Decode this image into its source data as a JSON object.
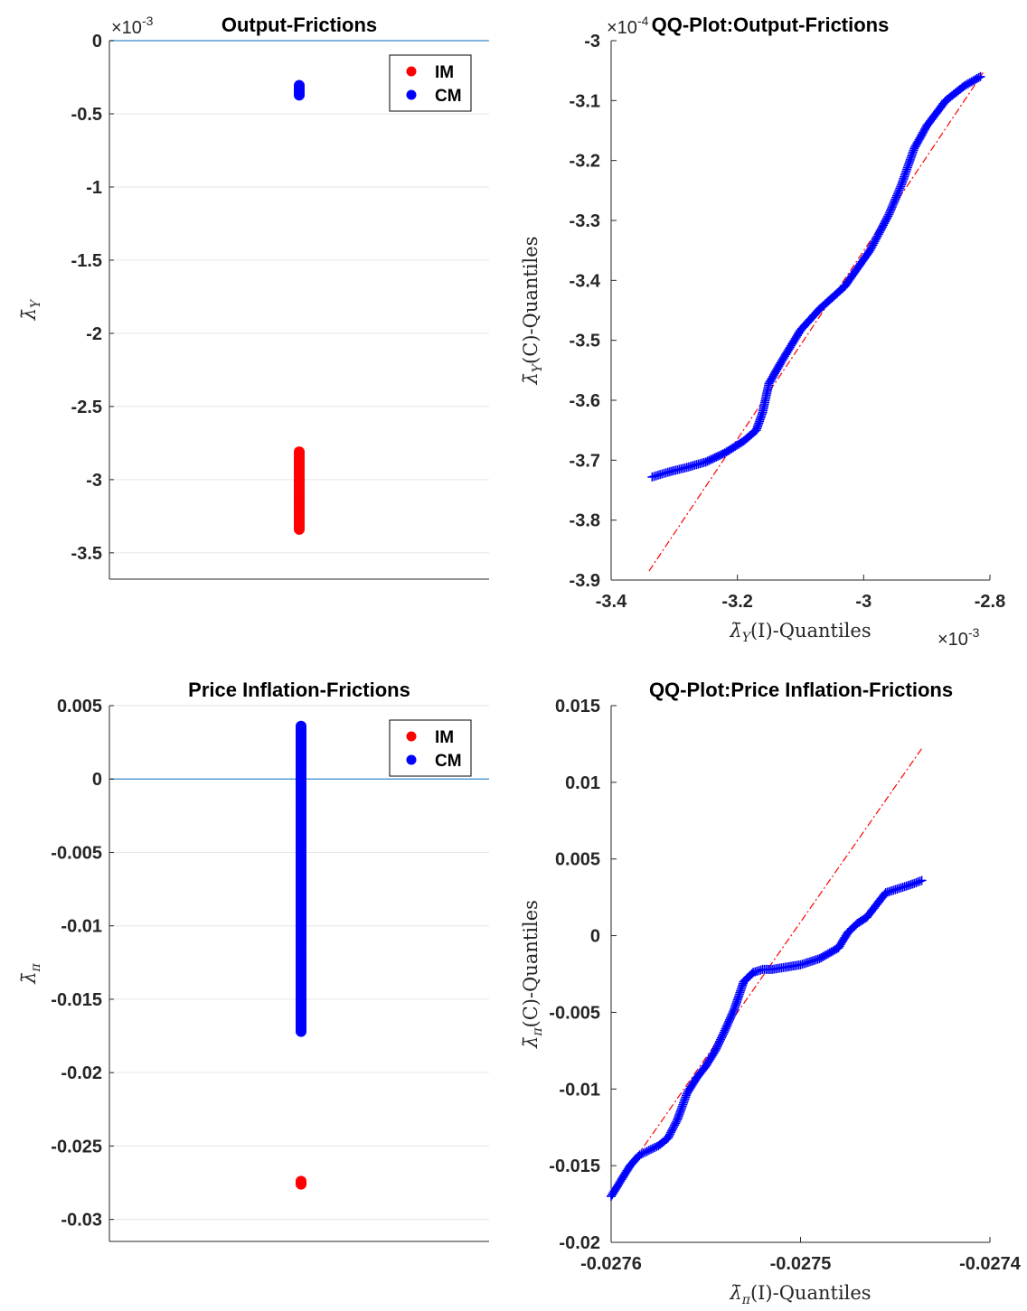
{
  "chart_data": [
    {
      "type": "scatter",
      "title": "Output-Frictions",
      "ylabel": "λ̄_Y",
      "exponent": "-3",
      "ylim": [
        -3.68,
        0
      ],
      "yticks": [
        0,
        -0.5,
        -1,
        -1.5,
        -2,
        -2.5,
        -3,
        -3.5
      ],
      "ytick_labels": [
        "0",
        "-0.5",
        "-1",
        "-1.5",
        "-2",
        "-2.5",
        "-3",
        "-3.5"
      ],
      "grid": true,
      "reference_line": 0,
      "legend_position": "top-right",
      "series": [
        {
          "name": "IM",
          "color": "#ff0000",
          "x": 0,
          "y_range": [
            -3.34,
            -2.81
          ]
        },
        {
          "name": "CM",
          "color": "#0000ff",
          "x": 0,
          "y_range": [
            -0.372,
            -0.306
          ]
        }
      ]
    },
    {
      "type": "scatter",
      "title": "QQ-Plot:Output-Frictions",
      "xlabel": "λ̄_Y(I)-Quantiles",
      "ylabel": "λ̄_Y(C)-Quantiles",
      "x_exponent": "-3",
      "y_exponent": "-4",
      "xlim": [
        -3.4,
        -2.8
      ],
      "ylim": [
        -3.9,
        -3.0
      ],
      "xticks": [
        -3.4,
        -3.2,
        -3.0,
        -2.8
      ],
      "xtick_labels": [
        "-3.4",
        "-3.2",
        "-3",
        "-2.8"
      ],
      "yticks": [
        -3.0,
        -3.1,
        -3.2,
        -3.3,
        -3.4,
        -3.5,
        -3.6,
        -3.7,
        -3.8,
        -3.9
      ],
      "ytick_labels": [
        "-3",
        "-3.1",
        "-3.2",
        "-3.3",
        "-3.4",
        "-3.5",
        "-3.6",
        "-3.7",
        "-3.8",
        "-3.9"
      ],
      "grid": false,
      "marker_color": "#0000ff",
      "reference_color": "#ff0000",
      "reference_line": {
        "x": [
          -3.34,
          -2.81
        ],
        "y": [
          -3.885,
          -3.052
        ]
      },
      "quantiles": {
        "x": [
          -3.335,
          -3.31,
          -3.28,
          -3.25,
          -3.22,
          -3.19,
          -3.17,
          -3.16,
          -3.15,
          -3.13,
          -3.1,
          -3.07,
          -3.03,
          -2.99,
          -2.96,
          -2.94,
          -2.92,
          -2.9,
          -2.87,
          -2.84,
          -2.815
        ],
        "y": [
          -3.728,
          -3.72,
          -3.712,
          -3.703,
          -3.688,
          -3.668,
          -3.65,
          -3.62,
          -3.572,
          -3.535,
          -3.483,
          -3.448,
          -3.41,
          -3.35,
          -3.29,
          -3.24,
          -3.18,
          -3.142,
          -3.1,
          -3.075,
          -3.06
        ]
      }
    },
    {
      "type": "scatter",
      "title": "Price Inflation-Frictions",
      "ylabel": "λ̄_π",
      "ylim": [
        -0.0315,
        0.005
      ],
      "yticks": [
        0.005,
        0,
        -0.005,
        -0.01,
        -0.015,
        -0.02,
        -0.025,
        -0.03
      ],
      "ytick_labels": [
        "0.005",
        "0",
        "-0.005",
        "-0.01",
        "-0.015",
        "-0.02",
        "-0.025",
        "-0.03"
      ],
      "grid": true,
      "reference_line": 0,
      "legend_position": "top-right",
      "series": [
        {
          "name": "IM",
          "color": "#ff0000",
          "x": 0,
          "y_range": [
            -0.0276,
            -0.0274
          ]
        },
        {
          "name": "CM",
          "color": "#0000ff",
          "x": 0,
          "y_range": [
            -0.0172,
            0.0036
          ]
        }
      ]
    },
    {
      "type": "scatter",
      "title": "QQ-Plot:Price Inflation-Frictions",
      "xlabel": "λ̄_π(I)-Quantiles",
      "ylabel": "λ̄_π(C)-Quantiles",
      "xlim": [
        -0.0276,
        -0.0274
      ],
      "ylim": [
        -0.02,
        0.015
      ],
      "xticks": [
        -0.0276,
        -0.0275,
        -0.0274
      ],
      "xtick_labels": [
        "-0.0276",
        "-0.0275",
        "-0.0274"
      ],
      "yticks": [
        0.015,
        0.01,
        0.005,
        0,
        -0.005,
        -0.01,
        -0.015,
        -0.02
      ],
      "ytick_labels": [
        "0.015",
        "0.01",
        "0.005",
        "0",
        "-0.005",
        "-0.01",
        "-0.015",
        "-0.02"
      ],
      "grid": false,
      "marker_color": "#0000ff",
      "reference_color": "#ff0000",
      "reference_line": {
        "x": [
          -0.0276,
          -0.027436
        ],
        "y": [
          -0.0168,
          0.0122
        ]
      },
      "quantiles": {
        "x": [
          -0.0276,
          -0.027595,
          -0.02759,
          -0.027585,
          -0.02758,
          -0.027575,
          -0.02757,
          -0.027565,
          -0.02756,
          -0.027555,
          -0.02755,
          -0.027545,
          -0.02754,
          -0.027535,
          -0.02753,
          -0.027525,
          -0.02752,
          -0.027515,
          -0.02751,
          -0.0275,
          -0.02749,
          -0.02748,
          -0.027475,
          -0.02747,
          -0.027465,
          -0.02746,
          -0.027455,
          -0.02745,
          -0.027445,
          -0.02744,
          -0.027436
        ],
        "y": [
          -0.017,
          -0.016,
          -0.015,
          -0.0143,
          -0.014,
          -0.0137,
          -0.0132,
          -0.012,
          -0.0103,
          -0.0093,
          -0.0085,
          -0.0075,
          -0.0062,
          -0.0048,
          -0.003,
          -0.0024,
          -0.0022,
          -0.0022,
          -0.0021,
          -0.0019,
          -0.0015,
          -0.0008,
          0.0002,
          0.0008,
          0.0012,
          0.002,
          0.0028,
          0.003,
          0.0032,
          0.0034,
          0.0036
        ]
      }
    }
  ]
}
